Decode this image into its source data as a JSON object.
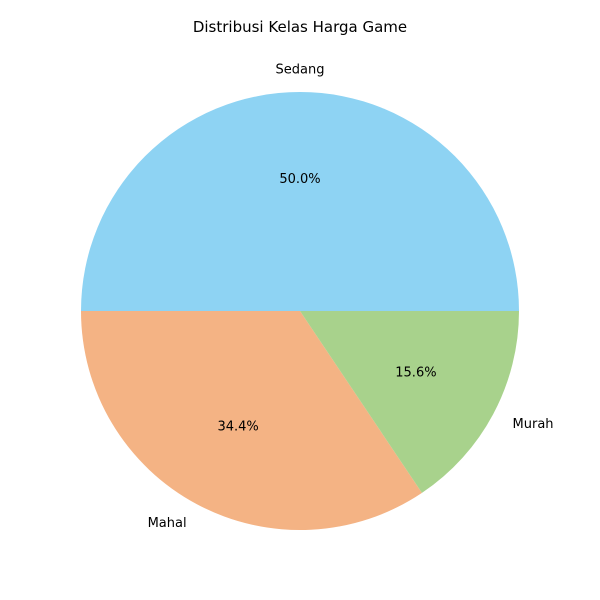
{
  "chart_data": {
    "type": "pie",
    "title": "Distribusi Kelas Harga Game",
    "slices": [
      {
        "label": "Sedang",
        "value": 50.0,
        "pct_label": "50.0%",
        "color": "#8ed3f3"
      },
      {
        "label": "Mahal",
        "value": 34.4,
        "pct_label": "34.4%",
        "color": "#f4b384"
      },
      {
        "label": "Murah",
        "value": 15.6,
        "pct_label": "15.6%",
        "color": "#a8d28c"
      }
    ],
    "start_angle_deg": 0,
    "direction": "counterclockwise",
    "legend": "none"
  }
}
